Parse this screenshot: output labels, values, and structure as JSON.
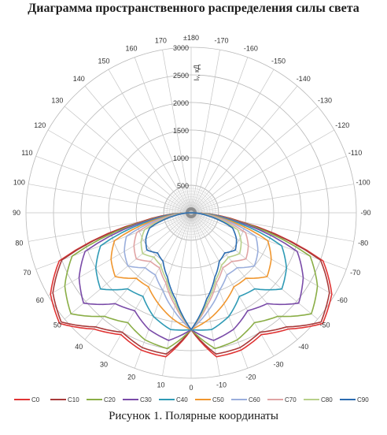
{
  "header": {
    "title": "Диаграмма пространственного распределения силы света"
  },
  "footer": {
    "caption": "Рисунок 1. Полярные координаты"
  },
  "chart_data": {
    "type": "polar",
    "title": "Диаграмма пространственного распределения силы света",
    "radial_label": "Iᵥ, кД",
    "rlim": [
      0,
      3000
    ],
    "radial_ticks": [
      "500",
      "1000",
      "1500",
      "2000",
      "2500",
      "3000"
    ],
    "angle_labels": [
      "±180",
      "170",
      "-170",
      "160",
      "-160",
      "150",
      "-150",
      "140",
      "-140",
      "130",
      "-130",
      "120",
      "-120",
      "110",
      "-110",
      "100",
      "-100",
      "90",
      "-90",
      "80",
      "-80",
      "70",
      "-70",
      "60",
      "-60",
      "50",
      "-50",
      "40",
      "-40",
      "30",
      "-30",
      "20",
      "-20",
      "10",
      "-10",
      "0"
    ],
    "grid": true,
    "legend_position": "bottom",
    "angles_deg": [
      0,
      10,
      20,
      30,
      40,
      50,
      60,
      70,
      80,
      90
    ],
    "series": [
      {
        "name": "C0",
        "color": "#e03434",
        "values": [
          2120,
          2650,
          2650,
          2550,
          2750,
          3120,
          2950,
          2550,
          900,
          0
        ]
      },
      {
        "name": "C10",
        "color": "#a83a3a",
        "values": [
          2120,
          2600,
          2600,
          2500,
          2700,
          3080,
          2900,
          2500,
          880,
          0
        ]
      },
      {
        "name": "C20",
        "color": "#8aae46",
        "values": [
          2120,
          2500,
          2450,
          2300,
          2450,
          2850,
          2650,
          2300,
          820,
          0
        ]
      },
      {
        "name": "C30",
        "color": "#7a4ba8",
        "values": [
          2120,
          2350,
          2250,
          2050,
          2150,
          2550,
          2350,
          2050,
          760,
          0
        ]
      },
      {
        "name": "C40",
        "color": "#2e9ab5",
        "values": [
          2120,
          2150,
          2000,
          1750,
          1800,
          2150,
          2000,
          1750,
          660,
          0
        ]
      },
      {
        "name": "C50",
        "color": "#f0962e",
        "values": [
          2120,
          1950,
          1750,
          1550,
          1550,
          1800,
          1680,
          1480,
          560,
          0
        ]
      },
      {
        "name": "C60",
        "color": "#9aaedc",
        "values": [
          2120,
          1800,
          1500,
          1300,
          1300,
          1500,
          1400,
          1250,
          470,
          0
        ]
      },
      {
        "name": "C70",
        "color": "#e0a4a4",
        "values": [
          2120,
          1700,
          1350,
          1150,
          1150,
          1300,
          1200,
          1050,
          400,
          0
        ]
      },
      {
        "name": "C80",
        "color": "#b8d08a",
        "values": [
          2120,
          1650,
          1300,
          1100,
          1050,
          1150,
          1050,
          900,
          350,
          0
        ]
      },
      {
        "name": "C90",
        "color": "#2a6bb0",
        "values": [
          2120,
          1600,
          1250,
          1020,
          950,
          1050,
          950,
          800,
          300,
          0
        ]
      }
    ]
  }
}
